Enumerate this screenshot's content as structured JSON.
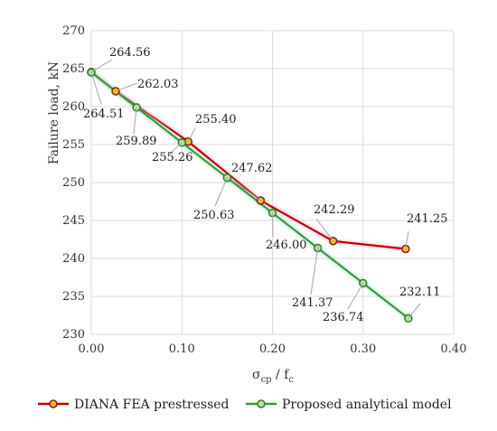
{
  "chart_data": {
    "type": "line",
    "xlabel_main": "σ",
    "xlabel_sub": "cp",
    "xlabel_mid": " / f",
    "xlabel_sub2": "c",
    "ylabel": "Failure load, kN",
    "xlim": [
      0,
      0.4
    ],
    "ylim": [
      230,
      270
    ],
    "x_ticks": [
      "0.00",
      "0.10",
      "0.20",
      "0.30",
      "0.40"
    ],
    "y_ticks": [
      "230",
      "235",
      "240",
      "245",
      "250",
      "255",
      "260",
      "265",
      "270"
    ],
    "grid": true,
    "legend_position": "bottom",
    "series": [
      {
        "name": "DIANA FEA prestressed",
        "color": "#c00000",
        "marker_fill": "#f0c020",
        "marker_edge": "#8b1a1a",
        "x": [
          0.0,
          0.027,
          0.107,
          0.187,
          0.267,
          0.347
        ],
        "y": [
          264.56,
          262.03,
          255.4,
          247.62,
          242.29,
          241.25
        ],
        "labels": [
          "264.56",
          "262.03",
          "255.40",
          "247.62",
          "242.29",
          "241.25"
        ]
      },
      {
        "name": "Proposed analytical model",
        "color": "#3a9a3a",
        "marker_fill": "#b8e0a0",
        "marker_edge": "#2e7d2e",
        "x": [
          0.0,
          0.05,
          0.1,
          0.15,
          0.2,
          0.25,
          0.3,
          0.35
        ],
        "y": [
          264.51,
          259.89,
          255.26,
          250.63,
          246.0,
          241.37,
          236.74,
          232.11
        ],
        "labels": [
          "264.51",
          "259.89",
          "255.26",
          "250.63",
          "246.00",
          "241.37",
          "236.74",
          "232.11"
        ]
      }
    ]
  }
}
